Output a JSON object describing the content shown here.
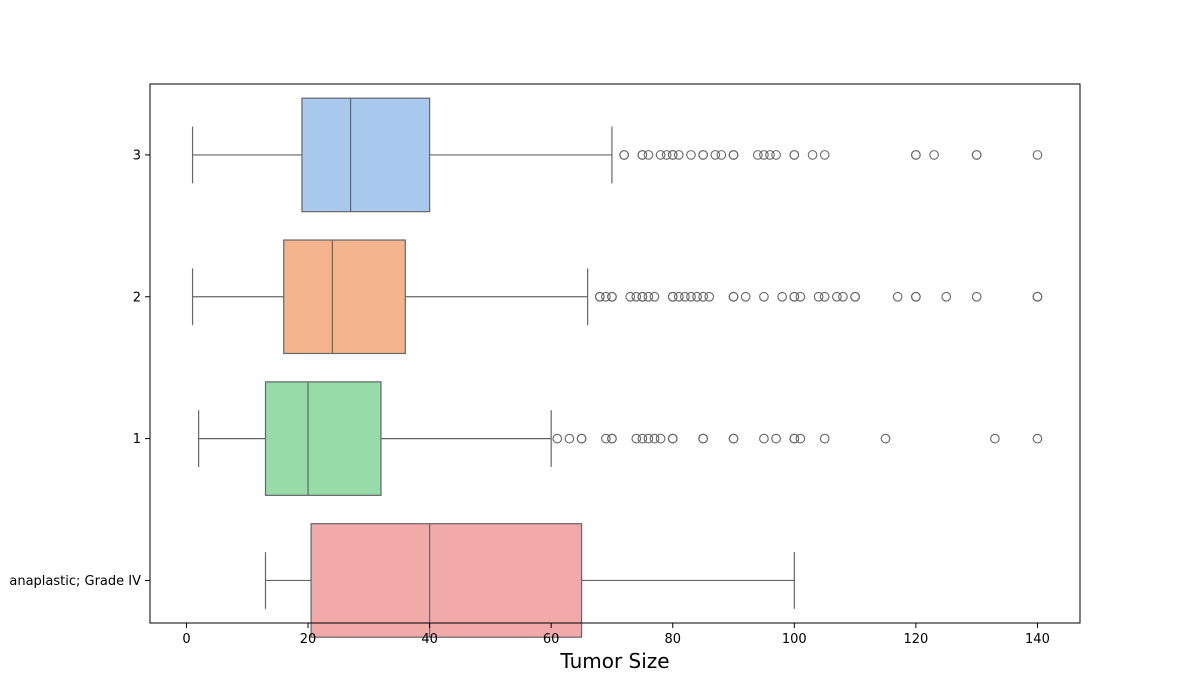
{
  "chart_data": {
    "type": "boxplot",
    "orientation": "horizontal",
    "title": "",
    "xlabel": "Tumor Size",
    "ylabel": "",
    "xlim": [
      -6,
      147
    ],
    "xticks": [
      0,
      20,
      40,
      60,
      80,
      100,
      120,
      140
    ],
    "grid": false,
    "legend": "none",
    "categories": [
      "3",
      "2",
      "1",
      " anaplastic; Grade IV"
    ],
    "boxes": [
      {
        "category": "3",
        "color": "#a8c8ee",
        "whisker_low": 1,
        "q1": 19,
        "median": 27,
        "q3": 40,
        "whisker_high": 70,
        "outliers": [
          72,
          72,
          75,
          75,
          76,
          78,
          79,
          80,
          80,
          81,
          83,
          85,
          85,
          87,
          88,
          90,
          90,
          90,
          94,
          95,
          96,
          97,
          100,
          100,
          103,
          105,
          120,
          120,
          123,
          130,
          130,
          140
        ]
      },
      {
        "category": "2",
        "color": "#f3b48e",
        "whisker_low": 1,
        "q1": 16,
        "median": 24,
        "q3": 36,
        "whisker_high": 66,
        "outliers": [
          68,
          68,
          69,
          70,
          70,
          73,
          74,
          75,
          75,
          76,
          77,
          80,
          80,
          81,
          82,
          83,
          84,
          85,
          86,
          90,
          90,
          92,
          95,
          98,
          100,
          100,
          101,
          104,
          105,
          107,
          108,
          110,
          110,
          117,
          120,
          120,
          125,
          130,
          140,
          140
        ]
      },
      {
        "category": "1",
        "color": "#96dba8",
        "whisker_low": 2,
        "q1": 13,
        "median": 20,
        "q3": 32,
        "whisker_high": 60,
        "outliers": [
          61,
          63,
          65,
          65,
          69,
          70,
          70,
          74,
          75,
          76,
          77,
          78,
          80,
          80,
          85,
          85,
          90,
          90,
          95,
          97,
          100,
          100,
          101,
          105,
          115,
          133,
          140
        ]
      },
      {
        "category": " anaplastic; Grade IV",
        "color": "#f2a9a9",
        "whisker_low": 13,
        "q1": 20.5,
        "median": 40,
        "q3": 65,
        "whisker_high": 100,
        "outliers": []
      }
    ]
  }
}
